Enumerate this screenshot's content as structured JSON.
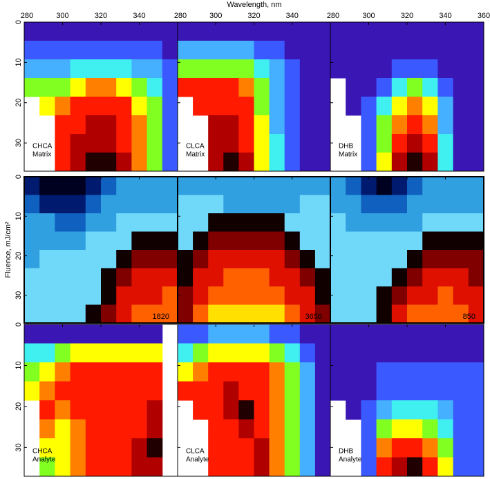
{
  "chart_data": {
    "type": "heatmap",
    "x_label": "Wavelength, nm",
    "y_label": "Fluence, mJ/cm²",
    "xlim": [
      280,
      360
    ],
    "ylim": [
      0,
      37
    ],
    "xticks": [
      280,
      300,
      320,
      340,
      360
    ],
    "yticks": [
      0,
      10,
      20,
      30
    ],
    "x": [
      280,
      288,
      296,
      304,
      312,
      320,
      328,
      336,
      344,
      352
    ],
    "y": [
      0,
      4.625,
      9.25,
      13.875,
      18.5,
      23.125,
      27.75,
      32.375
    ],
    "colormaps": {
      "spectral": [
        "#3a16b4",
        "#3a5aff",
        "#44b0ff",
        "#40f0f0",
        "#80ff20",
        "#ffff00",
        "#ff8000",
        "#ff1a00",
        "#b00000",
        "#200000"
      ],
      "thermal": [
        "#000020",
        "#001a70",
        "#1060c0",
        "#30a0e0",
        "#70d8f8",
        "#100000",
        "#800000",
        "#e01000",
        "#ff6000",
        "#ffe000"
      ]
    },
    "panels": [
      {
        "label": [
          "CHCA",
          "Matrix"
        ],
        "colormap": "spectral",
        "z": [
          [
            0,
            0,
            0,
            0,
            0,
            0,
            0,
            0,
            0,
            0
          ],
          [
            1,
            1,
            1,
            1,
            1,
            1,
            1,
            1,
            1,
            0
          ],
          [
            2,
            2,
            2,
            3,
            3,
            3,
            3,
            2,
            2,
            1
          ],
          [
            4,
            4,
            4,
            5,
            6,
            6,
            5,
            4,
            3,
            1
          ],
          [
            null,
            5,
            6,
            7,
            7,
            7,
            7,
            5,
            4,
            1
          ],
          [
            null,
            null,
            7,
            7,
            8,
            8,
            7,
            6,
            4,
            1
          ],
          [
            null,
            null,
            7,
            8,
            8,
            8,
            7,
            6,
            4,
            1
          ],
          [
            null,
            null,
            7,
            8,
            9,
            9,
            8,
            6,
            4,
            1
          ]
        ]
      },
      {
        "label": [
          "CLCA",
          "Matrix"
        ],
        "colormap": "spectral",
        "z": [
          [
            0,
            0,
            0,
            0,
            0,
            0,
            0,
            0,
            0,
            0
          ],
          [
            2,
            2,
            2,
            2,
            2,
            1,
            1,
            0,
            0,
            0
          ],
          [
            4,
            4,
            4,
            4,
            4,
            3,
            2,
            1,
            0,
            0
          ],
          [
            7,
            7,
            7,
            7,
            6,
            4,
            2,
            1,
            0,
            0
          ],
          [
            null,
            7,
            7,
            7,
            7,
            4,
            2,
            1,
            0,
            0
          ],
          [
            null,
            null,
            8,
            8,
            7,
            5,
            2,
            1,
            0,
            0
          ],
          [
            null,
            null,
            8,
            8,
            7,
            5,
            3,
            1,
            0,
            0
          ],
          [
            null,
            null,
            8,
            9,
            8,
            5,
            3,
            1,
            0,
            0
          ]
        ]
      },
      {
        "label": [
          "DHB",
          "Matrix"
        ],
        "colormap": "spectral",
        "z": [
          [
            0,
            0,
            0,
            0,
            0,
            0,
            0,
            0,
            0,
            0
          ],
          [
            0,
            0,
            0,
            0,
            0,
            0,
            0,
            0,
            0,
            0
          ],
          [
            0,
            0,
            0,
            0,
            1,
            1,
            1,
            0,
            0,
            0
          ],
          [
            null,
            0,
            0,
            1,
            3,
            4,
            3,
            1,
            0,
            0
          ],
          [
            null,
            0,
            1,
            3,
            5,
            6,
            5,
            2,
            0,
            0
          ],
          [
            null,
            null,
            1,
            4,
            6,
            7,
            6,
            2,
            0,
            0
          ],
          [
            null,
            null,
            1,
            4,
            7,
            8,
            7,
            3,
            0,
            0
          ],
          [
            null,
            null,
            1,
            5,
            8,
            9,
            8,
            3,
            0,
            0
          ]
        ]
      },
      {
        "annotation": 1820,
        "colormap": "thermal",
        "z": [
          [
            1,
            0,
            0,
            0,
            1,
            2,
            3,
            3,
            3,
            3
          ],
          [
            2,
            1,
            1,
            1,
            2,
            3,
            3,
            3,
            3,
            3
          ],
          [
            3,
            3,
            2,
            2,
            3,
            3,
            4,
            4,
            4,
            4
          ],
          [
            3,
            3,
            3,
            3,
            4,
            4,
            4,
            5,
            5,
            5
          ],
          [
            3,
            4,
            4,
            4,
            4,
            4,
            5,
            6,
            6,
            6
          ],
          [
            4,
            4,
            4,
            4,
            4,
            5,
            6,
            7,
            7,
            7
          ],
          [
            4,
            4,
            4,
            4,
            4,
            5,
            7,
            7,
            7,
            8
          ],
          [
            4,
            4,
            4,
            4,
            5,
            6,
            7,
            8,
            8,
            8
          ]
        ]
      },
      {
        "annotation": 3650,
        "colormap": "thermal",
        "z": [
          [
            3,
            3,
            3,
            3,
            3,
            3,
            3,
            3,
            3,
            3
          ],
          [
            4,
            4,
            4,
            3,
            3,
            3,
            3,
            3,
            4,
            4
          ],
          [
            4,
            4,
            5,
            5,
            5,
            5,
            5,
            4,
            4,
            4
          ],
          [
            4,
            5,
            6,
            6,
            6,
            6,
            6,
            5,
            4,
            4
          ],
          [
            5,
            6,
            7,
            7,
            7,
            7,
            7,
            6,
            5,
            4
          ],
          [
            5,
            7,
            7,
            8,
            8,
            8,
            7,
            7,
            6,
            5
          ],
          [
            6,
            7,
            8,
            8,
            8,
            8,
            8,
            7,
            7,
            5
          ],
          [
            6,
            8,
            9,
            9,
            9,
            9,
            9,
            8,
            7,
            6
          ]
        ]
      },
      {
        "annotation": 850,
        "colormap": "thermal",
        "z": [
          [
            3,
            2,
            1,
            0,
            1,
            2,
            3,
            3,
            3,
            3
          ],
          [
            3,
            3,
            2,
            2,
            2,
            3,
            3,
            3,
            3,
            3
          ],
          [
            4,
            3,
            3,
            3,
            3,
            3,
            4,
            4,
            4,
            4
          ],
          [
            4,
            4,
            4,
            4,
            4,
            4,
            5,
            5,
            5,
            5
          ],
          [
            4,
            4,
            4,
            4,
            4,
            5,
            6,
            6,
            6,
            6
          ],
          [
            4,
            4,
            4,
            4,
            5,
            6,
            7,
            7,
            7,
            6
          ],
          [
            4,
            4,
            4,
            5,
            6,
            7,
            7,
            8,
            7,
            7
          ],
          [
            4,
            4,
            4,
            5,
            7,
            8,
            8,
            8,
            8,
            7
          ]
        ]
      },
      {
        "label": [
          "CHCA",
          "Analyte"
        ],
        "colormap": "spectral",
        "z": [
          [
            0,
            0,
            0,
            0,
            0,
            0,
            0,
            0,
            0,
            null
          ],
          [
            3,
            3,
            4,
            5,
            5,
            5,
            5,
            5,
            5,
            null
          ],
          [
            4,
            5,
            6,
            7,
            7,
            7,
            7,
            7,
            7,
            null
          ],
          [
            5,
            6,
            7,
            7,
            7,
            7,
            7,
            7,
            7,
            null
          ],
          [
            null,
            7,
            6,
            7,
            7,
            7,
            7,
            7,
            8,
            null
          ],
          [
            null,
            6,
            5,
            6,
            7,
            7,
            7,
            7,
            8,
            null
          ],
          [
            null,
            5,
            5,
            6,
            7,
            7,
            7,
            8,
            9,
            null
          ],
          [
            null,
            4,
            5,
            6,
            7,
            7,
            7,
            8,
            8,
            null
          ]
        ]
      },
      {
        "label": [
          "CLCA",
          "Analyte"
        ],
        "colormap": "spectral",
        "z": [
          [
            1,
            1,
            2,
            2,
            2,
            2,
            1,
            1,
            0,
            0
          ],
          [
            3,
            4,
            5,
            5,
            5,
            5,
            4,
            3,
            1,
            0
          ],
          [
            5,
            6,
            7,
            7,
            7,
            7,
            6,
            4,
            2,
            0
          ],
          [
            7,
            7,
            7,
            8,
            7,
            7,
            6,
            4,
            2,
            0
          ],
          [
            null,
            7,
            7,
            8,
            9,
            7,
            6,
            4,
            2,
            0
          ],
          [
            null,
            null,
            7,
            7,
            8,
            7,
            6,
            4,
            2,
            0
          ],
          [
            null,
            null,
            7,
            7,
            7,
            8,
            6,
            4,
            2,
            0
          ],
          [
            null,
            null,
            7,
            7,
            7,
            8,
            6,
            4,
            2,
            0
          ]
        ]
      },
      {
        "label": [
          "DHB",
          "Analyte"
        ],
        "colormap": "spectral",
        "z": [
          [
            0,
            0,
            0,
            0,
            0,
            0,
            0,
            0,
            0,
            0
          ],
          [
            0,
            0,
            0,
            0,
            0,
            0,
            0,
            0,
            0,
            0
          ],
          [
            0,
            0,
            0,
            1,
            1,
            1,
            1,
            1,
            1,
            1
          ],
          [
            0,
            0,
            0,
            1,
            1,
            1,
            1,
            1,
            1,
            1
          ],
          [
            null,
            0,
            1,
            2,
            3,
            3,
            3,
            2,
            1,
            1
          ],
          [
            null,
            null,
            1,
            4,
            5,
            5,
            4,
            3,
            1,
            1
          ],
          [
            null,
            null,
            1,
            6,
            7,
            7,
            6,
            4,
            1,
            1
          ],
          [
            null,
            null,
            1,
            7,
            8,
            9,
            7,
            5,
            1,
            1
          ]
        ]
      }
    ]
  }
}
